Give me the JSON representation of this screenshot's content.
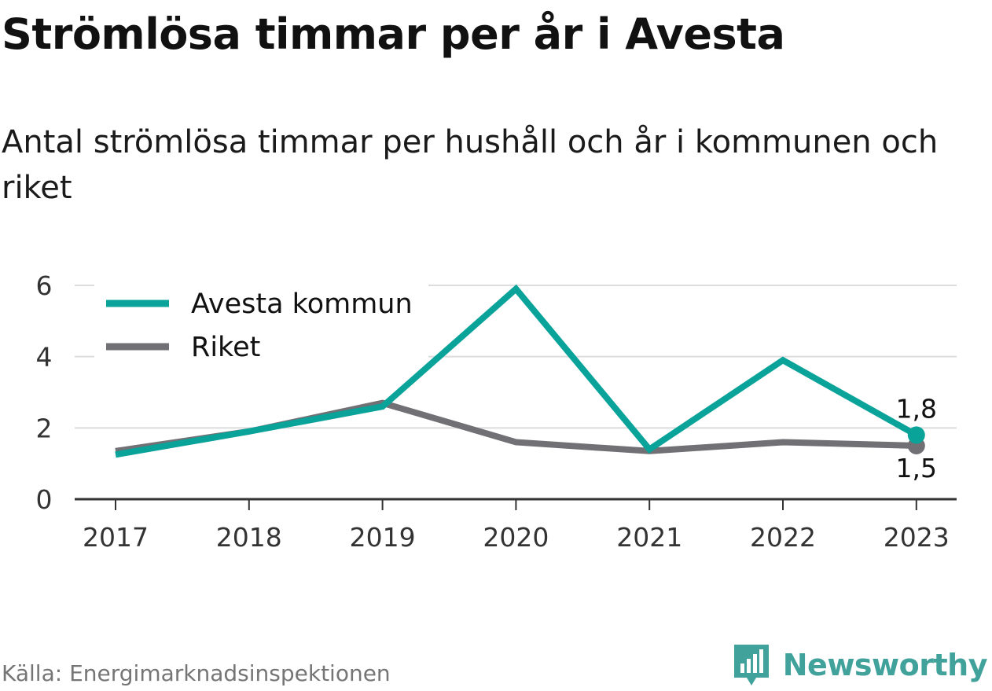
{
  "title": "Strömlösa timmar per år i Avesta",
  "subtitle": "Antal strömlösa timmar per hushåll och år i kommunen och riket",
  "source": "Källa: Energimarknadsinspektionen",
  "brand": {
    "name": "Newsworthy",
    "logo_icon": "newsworthy-bar-chart-logo",
    "color": "#41a19b"
  },
  "chart_data": {
    "type": "line",
    "x": [
      "2017",
      "2018",
      "2019",
      "2020",
      "2021",
      "2022",
      "2023"
    ],
    "series": [
      {
        "name": "Avesta kommun",
        "color": "#0aa39a",
        "values": [
          1.25,
          1.9,
          2.6,
          5.9,
          1.4,
          3.9,
          1.8
        ]
      },
      {
        "name": "Riket",
        "color": "#707075",
        "values": [
          1.35,
          1.9,
          2.7,
          1.6,
          1.35,
          1.6,
          1.5
        ]
      }
    ],
    "ylim": [
      0,
      6
    ],
    "yticks": [
      {
        "value": 0,
        "label": "0"
      },
      {
        "value": 2,
        "label": "2"
      },
      {
        "value": 4,
        "label": "4"
      },
      {
        "value": 6,
        "label": "6"
      }
    ],
    "grid": true,
    "legend_position": "top-left",
    "end_labels": [
      {
        "series": "Avesta kommun",
        "text": "1,8",
        "placement": "above"
      },
      {
        "series": "Riket",
        "text": "1,5",
        "placement": "below"
      }
    ]
  }
}
